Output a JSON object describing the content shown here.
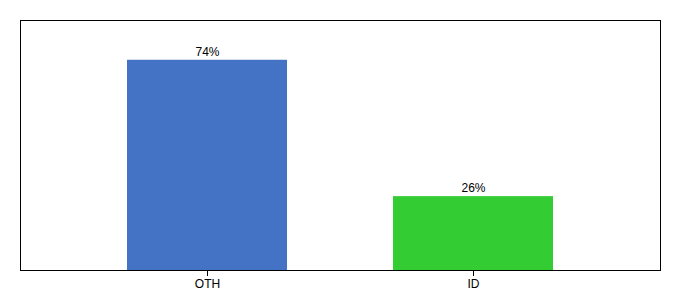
{
  "chart_data": {
    "type": "bar",
    "categories": [
      "OTH",
      "ID"
    ],
    "values": [
      74,
      26
    ],
    "value_labels": [
      "74%",
      "26%"
    ],
    "colors": [
      "#4472c4",
      "#33cc33"
    ],
    "ylim": [
      0,
      88
    ],
    "data_labels": true,
    "tick_labels": "x"
  }
}
